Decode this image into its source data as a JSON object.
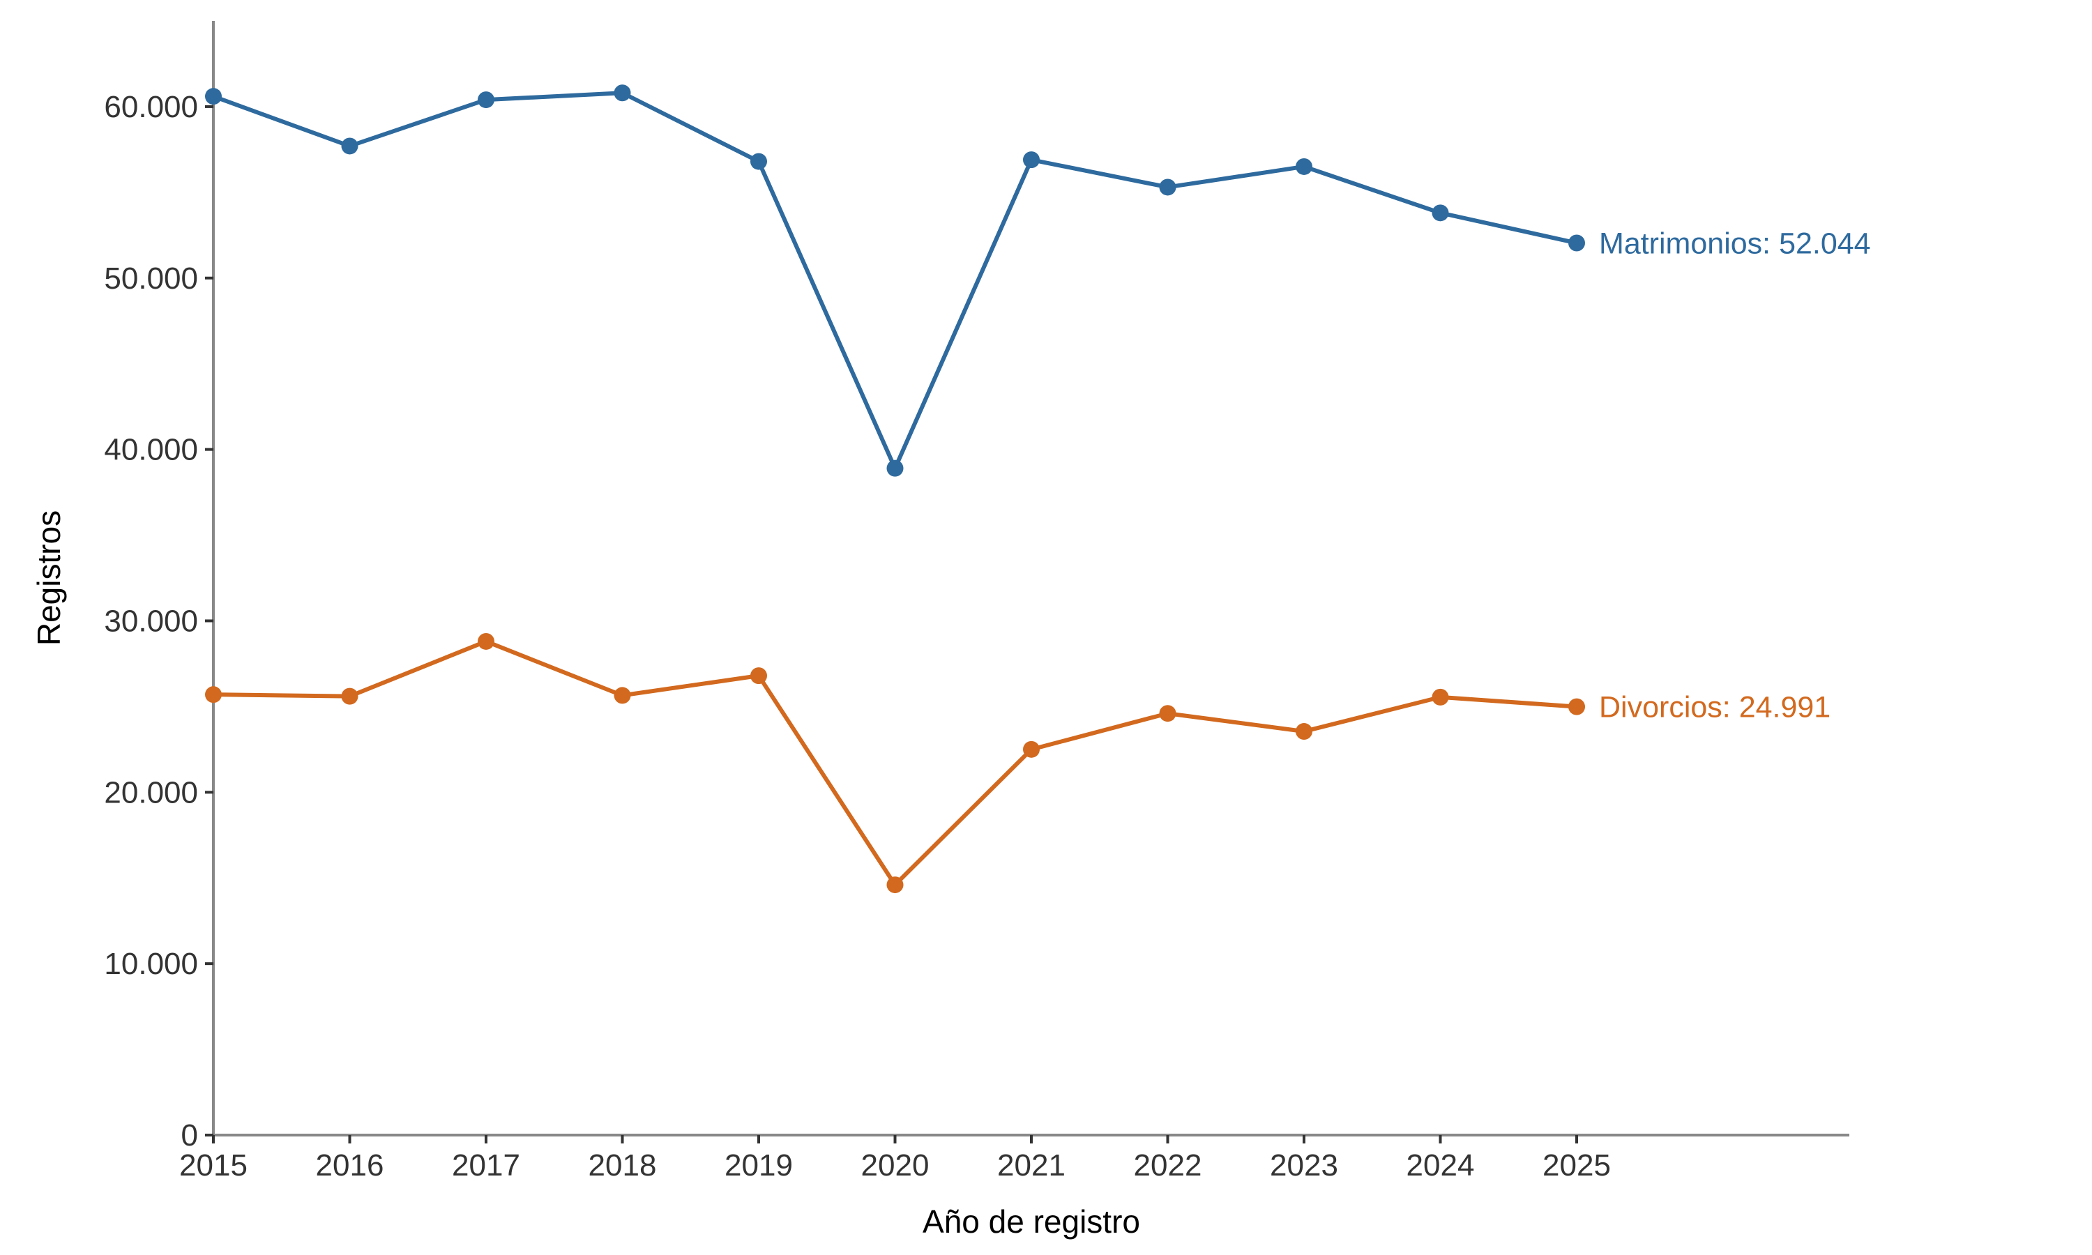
{
  "chart_data": {
    "type": "line",
    "title": "",
    "xlabel": "Año de registro",
    "ylabel": "Registros",
    "x": [
      2015,
      2016,
      2017,
      2018,
      2019,
      2020,
      2021,
      2022,
      2023,
      2024,
      2025
    ],
    "x_tick_labels": [
      "2015",
      "2016",
      "2017",
      "2018",
      "2019",
      "2020",
      "2021",
      "2022",
      "2023",
      "2024",
      "2025"
    ],
    "xlim": [
      2015,
      2027
    ],
    "ylim": [
      0,
      65000
    ],
    "y_ticks": [
      0,
      10000,
      20000,
      30000,
      40000,
      50000,
      60000
    ],
    "y_tick_labels": [
      "0",
      "10.000",
      "20.000",
      "30.000",
      "40.000",
      "50.000",
      "60.000"
    ],
    "grid": false,
    "legend": "none",
    "series": [
      {
        "name": "Matrimonios",
        "color": "#2e6a9e",
        "values": [
          60600,
          57700,
          60400,
          60800,
          56800,
          38900,
          56900,
          55300,
          56500,
          53800,
          52044
        ],
        "end_label": "Matrimonios: 52.044"
      },
      {
        "name": "Divorcios",
        "color": "#d2691e",
        "values": [
          25700,
          25600,
          28800,
          25650,
          26800,
          14600,
          22500,
          24600,
          23550,
          25550,
          24991
        ],
        "end_label": "Divorcios: 24.991"
      }
    ]
  }
}
